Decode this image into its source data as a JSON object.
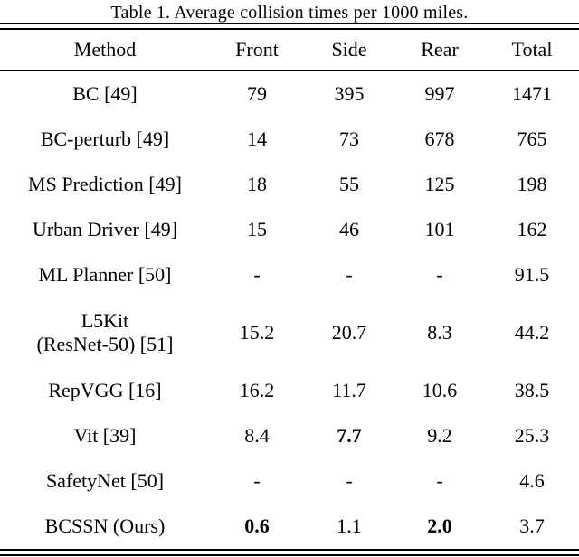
{
  "table": {
    "caption": "Table 1. Average collision times per 1000 miles.",
    "columns": [
      "Method",
      "Front",
      "Side",
      "Rear",
      "Total"
    ],
    "rows": [
      {
        "method_lines": [
          "BC [49]"
        ],
        "cells": [
          {
            "v": "79"
          },
          {
            "v": "395"
          },
          {
            "v": "997"
          },
          {
            "v": "1471"
          }
        ]
      },
      {
        "method_lines": [
          "BC-perturb [49]"
        ],
        "cells": [
          {
            "v": "14"
          },
          {
            "v": "73"
          },
          {
            "v": "678"
          },
          {
            "v": "765"
          }
        ]
      },
      {
        "method_lines": [
          "MS Prediction [49]"
        ],
        "cells": [
          {
            "v": "18"
          },
          {
            "v": "55"
          },
          {
            "v": "125"
          },
          {
            "v": "198"
          }
        ]
      },
      {
        "method_lines": [
          "Urban Driver [49]"
        ],
        "cells": [
          {
            "v": "15"
          },
          {
            "v": "46"
          },
          {
            "v": "101"
          },
          {
            "v": "162"
          }
        ]
      },
      {
        "method_lines": [
          "ML Planner [50]"
        ],
        "cells": [
          {
            "v": "-"
          },
          {
            "v": "-"
          },
          {
            "v": "-"
          },
          {
            "v": "91.5"
          }
        ]
      },
      {
        "method_lines": [
          "L5Kit",
          "(ResNet-50) [51]"
        ],
        "cells": [
          {
            "v": "15.2"
          },
          {
            "v": "20.7"
          },
          {
            "v": "8.3"
          },
          {
            "v": "44.2"
          }
        ]
      },
      {
        "method_lines": [
          "RepVGG [16]"
        ],
        "cells": [
          {
            "v": "16.2"
          },
          {
            "v": "11.7",
            "bold": false
          },
          {
            "v": "10.6"
          },
          {
            "v": "38.5"
          }
        ]
      },
      {
        "method_lines": [
          "Vit [39]"
        ],
        "cells": [
          {
            "v": "8.4"
          },
          {
            "v": "7.7",
            "bold": true
          },
          {
            "v": "9.2"
          },
          {
            "v": "25.3"
          }
        ]
      },
      {
        "method_lines": [
          "SafetyNet [50]"
        ],
        "cells": [
          {
            "v": "-"
          },
          {
            "v": "-"
          },
          {
            "v": "-"
          },
          {
            "v": "4.6"
          }
        ]
      },
      {
        "method_lines": [
          "BCSSN (Ours)"
        ],
        "cells": [
          {
            "v": "0.6",
            "bold": true
          },
          {
            "v": "1.1"
          },
          {
            "v": "2.0",
            "bold": true
          },
          {
            "v": "3.7"
          }
        ]
      }
    ]
  },
  "chart_data": {
    "type": "table",
    "title": "Table 1. Average collision times per 1000 miles.",
    "columns": [
      "Method",
      "Front",
      "Side",
      "Rear",
      "Total"
    ],
    "rows": [
      [
        "BC [49]",
        "79",
        "395",
        "997",
        "1471"
      ],
      [
        "BC-perturb [49]",
        "14",
        "73",
        "678",
        "765"
      ],
      [
        "MS Prediction [49]",
        "18",
        "55",
        "125",
        "198"
      ],
      [
        "Urban Driver [49]",
        "15",
        "46",
        "101",
        "162"
      ],
      [
        "ML Planner [50]",
        "-",
        "-",
        "-",
        "91.5"
      ],
      [
        "L5Kit (ResNet-50) [51]",
        "15.2",
        "20.7",
        "8.3",
        "44.2"
      ],
      [
        "RepVGG [16]",
        "16.2",
        "11.7",
        "10.6",
        "38.5"
      ],
      [
        "Vit [39]",
        "8.4",
        "7.7",
        "9.2",
        "25.3"
      ],
      [
        "SafetyNet [50]",
        "-",
        "-",
        "-",
        "4.6"
      ],
      [
        "BCSSN (Ours)",
        "0.6",
        "1.1",
        "2.0",
        "3.7"
      ]
    ],
    "bold_cells": [
      [
        "Vit [39]",
        "Side"
      ],
      [
        "BCSSN (Ours)",
        "Front"
      ],
      [
        "BCSSN (Ours)",
        "Rear"
      ]
    ]
  }
}
